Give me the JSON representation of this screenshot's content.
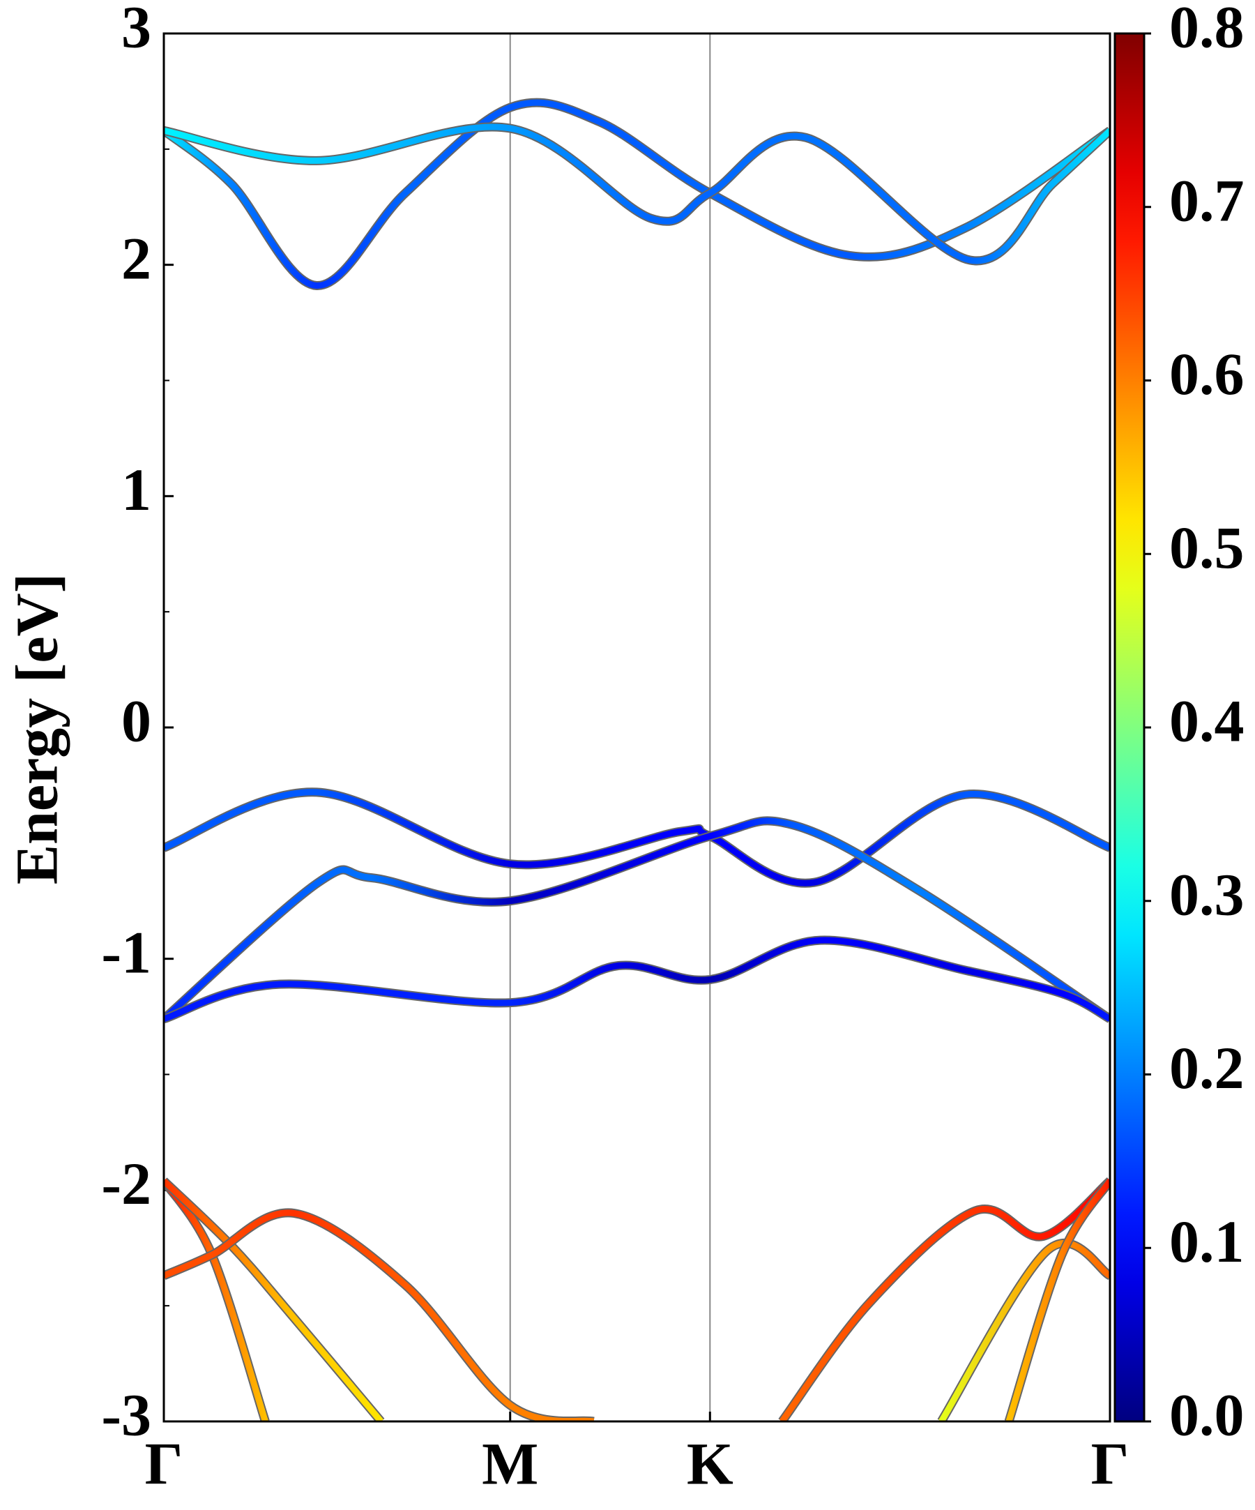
{
  "chart_data": {
    "type": "band_structure",
    "ylabel": "Energy [eV]",
    "xlim": [
      0,
      2.732
    ],
    "xticks": [
      {
        "value": 0,
        "label": "Γ"
      },
      {
        "value": 1,
        "label": "M"
      },
      {
        "value": 1.577,
        "label": "K"
      },
      {
        "value": 2.732,
        "label": "Γ"
      }
    ],
    "kpoint_lines": true,
    "ylim": [
      -3,
      3
    ],
    "yticks": [
      -3,
      -2,
      -1,
      0,
      1,
      2,
      3
    ],
    "yminorticks": [
      -2.5,
      -1.5,
      -0.5,
      0.5,
      1.5,
      2.5
    ],
    "colormap": "jet",
    "clim": [
      0,
      0.8
    ],
    "cticks": [
      {
        "value": 0,
        "label": "0.0"
      },
      0.1,
      0.2,
      0.3,
      0.4,
      0.5,
      0.6,
      0.7,
      0.8
    ],
    "series": [
      {
        "x": [
          0,
          0.195,
          0.441,
          0.697,
          1.0,
          1.255,
          1.577,
          1.98,
          2.315,
          2.732
        ],
        "values": [
          2.58,
          2.35,
          1.91,
          2.31,
          2.68,
          2.62,
          2.31,
          2.04,
          2.16,
          2.58
        ],
        "weights": [
          0.28,
          0.2,
          0.14,
          0.18,
          0.17,
          0.17,
          0.18,
          0.17,
          0.2,
          0.28
        ]
      },
      {
        "x": [
          0,
          0.441,
          1.0,
          1.408,
          1.577,
          1.854,
          2.328,
          2.566,
          2.732
        ],
        "values": [
          2.58,
          2.45,
          2.59,
          2.2,
          2.31,
          2.55,
          2.02,
          2.35,
          2.58
        ],
        "weights": [
          0.29,
          0.26,
          0.22,
          0.18,
          0.18,
          0.19,
          0.18,
          0.24,
          0.28
        ]
      },
      {
        "x": [
          0,
          0.441,
          1.0,
          1.492,
          1.577,
          1.878,
          2.315,
          2.732
        ],
        "values": [
          -0.52,
          -0.28,
          -0.59,
          -0.45,
          -0.47,
          -0.67,
          -0.29,
          -0.52
        ],
        "weights": [
          0.17,
          0.17,
          0.08,
          0.1,
          0.1,
          0.08,
          0.17,
          0.17
        ]
      },
      {
        "x": [
          0,
          0.446,
          0.6,
          1.0,
          1.577,
          1.813,
          2.175,
          2.732
        ],
        "values": [
          -1.26,
          -0.67,
          -0.65,
          -0.75,
          -0.47,
          -0.42,
          -0.7,
          -1.26
        ],
        "weights": [
          0.13,
          0.18,
          0.19,
          0.05,
          0.1,
          0.17,
          0.2,
          0.15
        ]
      },
      {
        "x": [
          0,
          0.335,
          1.0,
          1.311,
          1.577,
          1.896,
          2.315,
          2.593,
          2.732
        ],
        "values": [
          -1.26,
          -1.11,
          -1.19,
          -1.03,
          -1.09,
          -0.92,
          -1.05,
          -1.15,
          -1.26
        ],
        "weights": [
          0.12,
          0.12,
          0.13,
          0.08,
          0.04,
          0.1,
          0.08,
          0.1,
          0.12
        ]
      },
      {
        "x": [
          0,
          0.139,
          0.293
        ],
        "values": [
          -1.96,
          -2.28,
          -3.0
        ],
        "weights": [
          0.68,
          0.62,
          0.55
        ]
      },
      {
        "x": [
          0,
          0.195,
          0.363,
          0.627
        ],
        "values": [
          -1.96,
          -2.24,
          -2.53,
          -3.0
        ],
        "weights": [
          0.66,
          0.6,
          0.55,
          0.52
        ]
      },
      {
        "x": [
          0,
          0.139,
          0.376,
          0.697,
          1.0,
          1.241
        ],
        "values": [
          -2.37,
          -2.28,
          -2.1,
          -2.41,
          -2.93,
          -3.0
        ],
        "weights": [
          0.64,
          0.64,
          0.66,
          0.63,
          0.6,
          0.6
        ]
      },
      {
        "x": [
          1.785,
          2.036,
          2.342,
          2.538,
          2.732
        ],
        "values": [
          -3.0,
          -2.49,
          -2.09,
          -2.2,
          -1.96
        ],
        "weights": [
          0.62,
          0.64,
          0.66,
          0.68,
          0.7
        ]
      },
      {
        "x": [
          2.245,
          2.552,
          2.732
        ],
        "values": [
          -3.0,
          -2.26,
          -2.37
        ],
        "weights": [
          0.48,
          0.58,
          0.62
        ]
      },
      {
        "x": [
          2.44,
          2.593,
          2.732
        ],
        "values": [
          -3.0,
          -2.28,
          -1.96
        ],
        "weights": [
          0.55,
          0.6,
          0.68
        ]
      }
    ]
  }
}
